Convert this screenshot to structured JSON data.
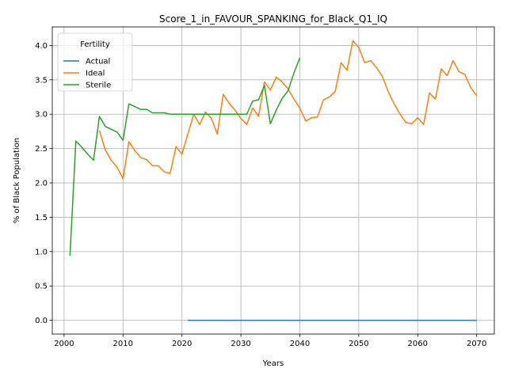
{
  "chart_data": {
    "type": "line",
    "title": "Score_1_in_FAVOUR_SPANKING_for_Black_Q1_IQ",
    "xlabel": "Years",
    "ylabel": "% of Black Population",
    "xlim": [
      1998,
      2073
    ],
    "ylim": [
      -0.2,
      4.27
    ],
    "xticks": [
      2000,
      2010,
      2020,
      2030,
      2040,
      2050,
      2060,
      2070
    ],
    "yticks": [
      0.0,
      0.5,
      1.0,
      1.5,
      2.0,
      2.5,
      3.0,
      3.5,
      4.0
    ],
    "xtick_labels": [
      "2000",
      "2010",
      "2020",
      "2030",
      "2040",
      "2050",
      "2060",
      "2070"
    ],
    "ytick_labels": [
      "0.0",
      "0.5",
      "1.0",
      "1.5",
      "2.0",
      "2.5",
      "3.0",
      "3.5",
      "4.0"
    ],
    "grid": true,
    "legend": {
      "title": "Fertility",
      "placement": "top-left"
    },
    "series": [
      {
        "name": "Actual",
        "color": "#1f77b4",
        "x": [
          2021,
          2070
        ],
        "values": [
          0.0,
          0.0
        ]
      },
      {
        "name": "Ideal",
        "color": "#ff7f0e",
        "x": [
          2006,
          2007,
          2008,
          2009,
          2010,
          2011,
          2012,
          2013,
          2014,
          2015,
          2016,
          2017,
          2018,
          2019,
          2020,
          2021,
          2022,
          2023,
          2024,
          2025,
          2026,
          2027,
          2028,
          2029,
          2030,
          2031,
          2032,
          2033,
          2034,
          2035,
          2036,
          2037,
          2038,
          2039,
          2040,
          2041,
          2042,
          2043,
          2044,
          2045,
          2046,
          2047,
          2048,
          2049,
          2050,
          2051,
          2052,
          2053,
          2054,
          2055,
          2056,
          2057,
          2058,
          2059,
          2060,
          2061,
          2062,
          2063,
          2064,
          2065,
          2066,
          2067,
          2068,
          2069,
          2070
        ],
        "values": [
          2.76,
          2.48,
          2.33,
          2.23,
          2.06,
          2.6,
          2.47,
          2.37,
          2.34,
          2.25,
          2.25,
          2.16,
          2.14,
          2.53,
          2.42,
          2.71,
          3.0,
          2.85,
          3.03,
          2.94,
          2.71,
          3.29,
          3.16,
          3.06,
          2.94,
          2.85,
          3.09,
          2.97,
          3.47,
          3.35,
          3.54,
          3.47,
          3.37,
          3.22,
          3.09,
          2.9,
          2.95,
          2.96,
          3.21,
          3.25,
          3.33,
          3.75,
          3.64,
          4.07,
          3.97,
          3.75,
          3.78,
          3.68,
          3.55,
          3.33,
          3.15,
          3.0,
          2.88,
          2.86,
          2.95,
          2.85,
          3.31,
          3.22,
          3.66,
          3.56,
          3.78,
          3.62,
          3.58,
          3.39,
          3.27
        ]
      },
      {
        "name": "Sterile",
        "color": "#2ca02c",
        "x": [
          2001,
          2002,
          2003,
          2004,
          2005,
          2006,
          2007,
          2008,
          2009,
          2010,
          2011,
          2012,
          2013,
          2014,
          2015,
          2016,
          2017,
          2018,
          2019,
          2020,
          2021,
          2022,
          2023,
          2024,
          2025,
          2026,
          2027,
          2028,
          2029,
          2030,
          2031,
          2032,
          2033,
          2034,
          2035,
          2036,
          2037,
          2038,
          2039,
          2040
        ],
        "values": [
          0.94,
          2.61,
          2.52,
          2.42,
          2.33,
          2.97,
          2.82,
          2.78,
          2.74,
          2.62,
          3.15,
          3.11,
          3.07,
          3.07,
          3.02,
          3.02,
          3.02,
          3.0,
          3.0,
          3.0,
          3.0,
          3.0,
          3.0,
          3.0,
          3.0,
          3.0,
          3.0,
          3.0,
          3.0,
          3.0,
          3.0,
          3.19,
          3.21,
          3.42,
          2.86,
          3.06,
          3.23,
          3.34,
          3.6,
          3.82
        ]
      }
    ]
  }
}
